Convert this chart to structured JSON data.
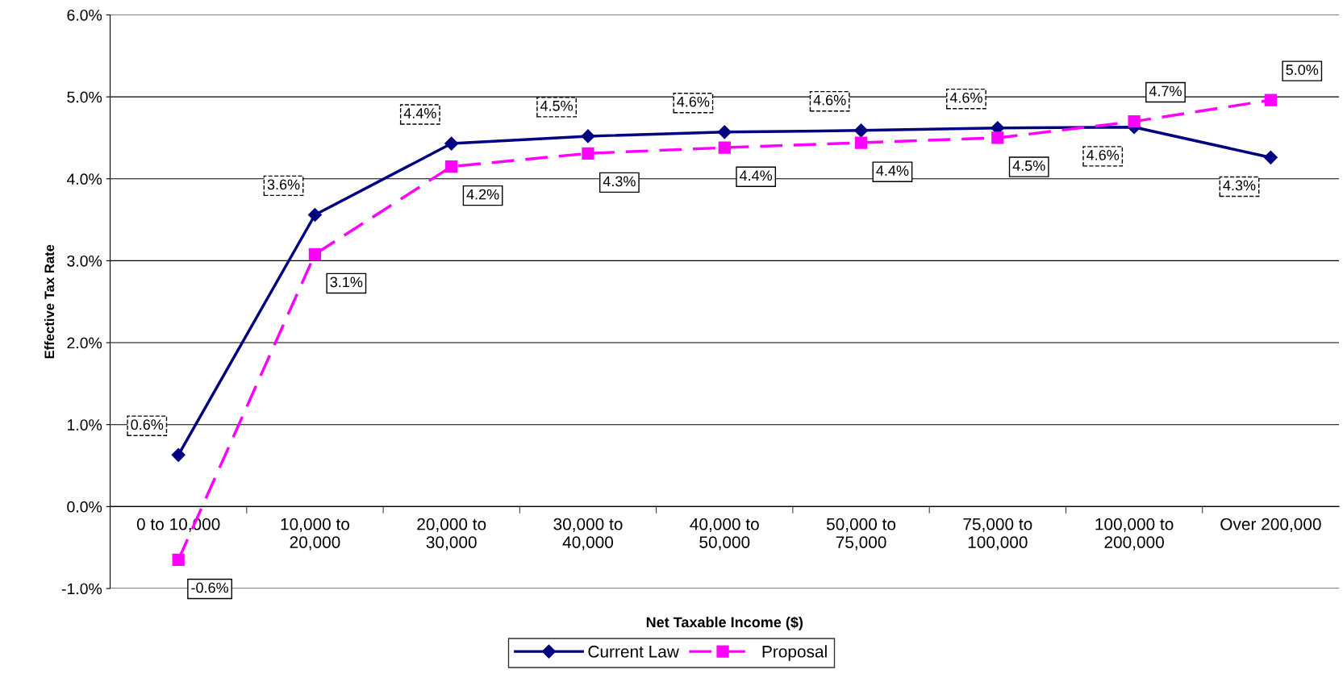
{
  "chart_data": {
    "type": "line",
    "xlabel": "Net Taxable Income ($)",
    "ylabel": "Effective Tax Rate",
    "categories": [
      "0 to 10,000",
      "10,000 to\n20,000",
      "20,000 to\n30,000",
      "30,000 to\n40,000",
      "40,000 to\n50,000",
      "50,000 to\n75,000",
      "75,000 to\n100,000",
      "100,000 to\n200,000",
      "Over 200,000"
    ],
    "series": [
      {
        "name": "Current Law",
        "color": "#000080",
        "marker": "diamond",
        "line_style": "solid",
        "values": [
          0.63,
          3.56,
          4.43,
          4.52,
          4.57,
          4.59,
          4.62,
          4.63,
          4.26
        ],
        "value_labels": [
          "0.6%",
          "3.6%",
          "4.4%",
          "4.5%",
          "4.6%",
          "4.6%",
          "4.6%",
          "4.6%",
          "4.3%"
        ]
      },
      {
        "name": "Proposal",
        "color": "#ff00ff",
        "marker": "square",
        "line_style": "dashed",
        "values": [
          -0.65,
          3.08,
          4.15,
          4.31,
          4.38,
          4.44,
          4.5,
          4.7,
          4.96
        ],
        "value_labels": [
          "-0.6%",
          "3.1%",
          "4.2%",
          "4.3%",
          "4.4%",
          "4.4%",
          "4.5%",
          "4.7%",
          "5.0%"
        ]
      }
    ],
    "ylim": [
      -1,
      6
    ],
    "yticks": [
      {
        "value": -1,
        "label": "-1.0%"
      },
      {
        "value": 0,
        "label": "0.0%"
      },
      {
        "value": 1,
        "label": "1.0%"
      },
      {
        "value": 2,
        "label": "2.0%"
      },
      {
        "value": 3,
        "label": "3.0%"
      },
      {
        "value": 4,
        "label": "4.0%"
      },
      {
        "value": 5,
        "label": "5.0%"
      },
      {
        "value": 6,
        "label": "6.0%"
      }
    ],
    "grid": "y",
    "legend": "bottom"
  }
}
